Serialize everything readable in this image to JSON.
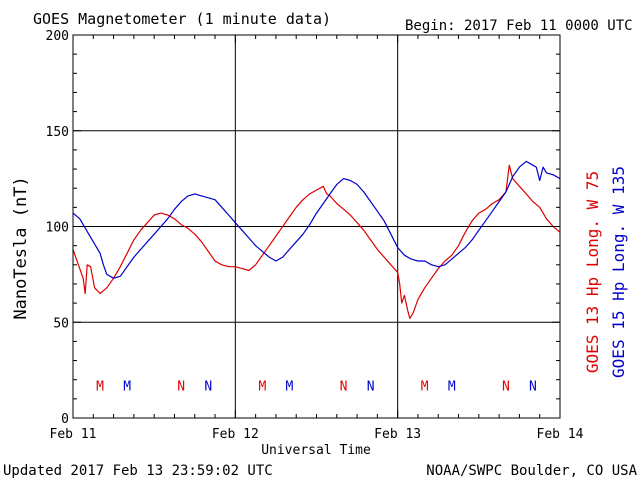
{
  "header": {
    "title": "GOES Magnetometer (1 minute data)",
    "begin": "Begin:  2017 Feb 11 0000 UTC"
  },
  "footer": {
    "updated": "Updated 2017 Feb 13 23:59:02 UTC",
    "source": "NOAA/SWPC Boulder, CO USA"
  },
  "chart_data": {
    "type": "line",
    "title": "GOES Magnetometer (1 minute data)",
    "xlabel": "Universal Time",
    "ylabel": "NanoTesla (nT)",
    "xlim": [
      0,
      72
    ],
    "ylim": [
      0,
      200
    ],
    "x_unit": "hours since 2017 Feb 11 0000 UTC",
    "x_ticks": [
      {
        "x": 0,
        "label": "Feb 11"
      },
      {
        "x": 24,
        "label": "Feb 12"
      },
      {
        "x": 48,
        "label": "Feb 13"
      },
      {
        "x": 72,
        "label": "Feb 14"
      }
    ],
    "y_ticks": [
      0,
      50,
      100,
      150,
      200
    ],
    "grid": true,
    "series": [
      {
        "name": "GOES 13 Hp  Long. W 75",
        "color": "#e00000",
        "points": [
          [
            0,
            88
          ],
          [
            0.8,
            80
          ],
          [
            1.5,
            73
          ],
          [
            1.8,
            65
          ],
          [
            2.1,
            80
          ],
          [
            2.6,
            79
          ],
          [
            3.2,
            68
          ],
          [
            4,
            65
          ],
          [
            5,
            68
          ],
          [
            6,
            73
          ],
          [
            7,
            79
          ],
          [
            8,
            86
          ],
          [
            9,
            93
          ],
          [
            10,
            98
          ],
          [
            11,
            102
          ],
          [
            12,
            106
          ],
          [
            13,
            107
          ],
          [
            14,
            106
          ],
          [
            15,
            104
          ],
          [
            16,
            101
          ],
          [
            17,
            99
          ],
          [
            18,
            96
          ],
          [
            19,
            92
          ],
          [
            20,
            87
          ],
          [
            21,
            82
          ],
          [
            22,
            80
          ],
          [
            23,
            79
          ],
          [
            24,
            79
          ],
          [
            25,
            78
          ],
          [
            26,
            77
          ],
          [
            27,
            80
          ],
          [
            28,
            85
          ],
          [
            29,
            90
          ],
          [
            30,
            95
          ],
          [
            31,
            100
          ],
          [
            32,
            105
          ],
          [
            33,
            110
          ],
          [
            34,
            114
          ],
          [
            35,
            117
          ],
          [
            36,
            119
          ],
          [
            37,
            121
          ],
          [
            37.5,
            117
          ],
          [
            38,
            116
          ],
          [
            39,
            112
          ],
          [
            40,
            109
          ],
          [
            41,
            106
          ],
          [
            42,
            102
          ],
          [
            43,
            98
          ],
          [
            44,
            93
          ],
          [
            45,
            88
          ],
          [
            46,
            84
          ],
          [
            47,
            80
          ],
          [
            48,
            76
          ],
          [
            48.3,
            70
          ],
          [
            48.6,
            60
          ],
          [
            49,
            64
          ],
          [
            49.5,
            56
          ],
          [
            49.8,
            52
          ],
          [
            50.3,
            55
          ],
          [
            51,
            62
          ],
          [
            52,
            68
          ],
          [
            53,
            73
          ],
          [
            54,
            78
          ],
          [
            55,
            82
          ],
          [
            56,
            85
          ],
          [
            57,
            90
          ],
          [
            58,
            97
          ],
          [
            59,
            103
          ],
          [
            60,
            107
          ],
          [
            61,
            109
          ],
          [
            62,
            112
          ],
          [
            63,
            114
          ],
          [
            64,
            118
          ],
          [
            64.5,
            132
          ],
          [
            65,
            125
          ],
          [
            66,
            121
          ],
          [
            67,
            117
          ],
          [
            68,
            113
          ],
          [
            69,
            110
          ],
          [
            70,
            104
          ],
          [
            71,
            100
          ],
          [
            72,
            97
          ]
        ]
      },
      {
        "name": "GOES 15 Hp  Long. W 135",
        "color": "#0000cc",
        "points": [
          [
            0,
            107
          ],
          [
            1,
            104
          ],
          [
            2,
            98
          ],
          [
            3,
            92
          ],
          [
            4,
            86
          ],
          [
            4.5,
            80
          ],
          [
            5,
            75
          ],
          [
            5.5,
            74
          ],
          [
            6,
            73
          ],
          [
            7,
            74
          ],
          [
            8,
            79
          ],
          [
            9,
            84
          ],
          [
            10,
            88
          ],
          [
            11,
            92
          ],
          [
            12,
            96
          ],
          [
            13,
            100
          ],
          [
            14,
            104
          ],
          [
            15,
            109
          ],
          [
            16,
            113
          ],
          [
            17,
            116
          ],
          [
            18,
            117
          ],
          [
            19,
            116
          ],
          [
            20,
            115
          ],
          [
            21,
            114
          ],
          [
            22,
            110
          ],
          [
            23,
            106
          ],
          [
            24,
            102
          ],
          [
            25,
            98
          ],
          [
            26,
            94
          ],
          [
            27,
            90
          ],
          [
            28,
            87
          ],
          [
            29,
            84
          ],
          [
            30,
            82
          ],
          [
            31,
            84
          ],
          [
            32,
            88
          ],
          [
            33,
            92
          ],
          [
            34,
            96
          ],
          [
            35,
            101
          ],
          [
            36,
            107
          ],
          [
            37,
            112
          ],
          [
            38,
            117
          ],
          [
            39,
            122
          ],
          [
            40,
            125
          ],
          [
            41,
            124
          ],
          [
            42,
            122
          ],
          [
            43,
            118
          ],
          [
            44,
            113
          ],
          [
            45,
            108
          ],
          [
            46,
            103
          ],
          [
            47,
            96
          ],
          [
            48,
            89
          ],
          [
            49,
            85
          ],
          [
            50,
            83
          ],
          [
            51,
            82
          ],
          [
            52,
            82
          ],
          [
            53,
            80
          ],
          [
            54,
            79
          ],
          [
            55,
            80
          ],
          [
            56,
            83
          ],
          [
            57,
            86
          ],
          [
            58,
            89
          ],
          [
            59,
            93
          ],
          [
            60,
            98
          ],
          [
            61,
            103
          ],
          [
            62,
            108
          ],
          [
            63,
            113
          ],
          [
            64,
            118
          ],
          [
            65,
            126
          ],
          [
            66,
            131
          ],
          [
            67,
            134
          ],
          [
            68,
            132
          ],
          [
            68.5,
            131
          ],
          [
            69,
            124
          ],
          [
            69.5,
            131
          ],
          [
            70,
            128
          ],
          [
            71,
            127
          ],
          [
            72,
            125
          ]
        ]
      }
    ],
    "markers": [
      {
        "x": 4,
        "label": "M",
        "series": "GOES 13 Hp  Long. W 75"
      },
      {
        "x": 8,
        "label": "M",
        "series": "GOES 15 Hp  Long. W 135"
      },
      {
        "x": 16,
        "label": "N",
        "series": "GOES 13 Hp  Long. W 75"
      },
      {
        "x": 20,
        "label": "N",
        "series": "GOES 15 Hp  Long. W 135"
      },
      {
        "x": 28,
        "label": "M",
        "series": "GOES 13 Hp  Long. W 75"
      },
      {
        "x": 32,
        "label": "M",
        "series": "GOES 15 Hp  Long. W 135"
      },
      {
        "x": 40,
        "label": "N",
        "series": "GOES 13 Hp  Long. W 75"
      },
      {
        "x": 44,
        "label": "N",
        "series": "GOES 15 Hp  Long. W 135"
      },
      {
        "x": 52,
        "label": "M",
        "series": "GOES 13 Hp  Long. W 75"
      },
      {
        "x": 56,
        "label": "M",
        "series": "GOES 15 Hp  Long. W 135"
      },
      {
        "x": 64,
        "label": "N",
        "series": "GOES 13 Hp  Long. W 75"
      },
      {
        "x": 68,
        "label": "N",
        "series": "GOES 15 Hp  Long. W 135"
      }
    ],
    "marker_level": 17,
    "legend_placement": "right, vertical"
  }
}
